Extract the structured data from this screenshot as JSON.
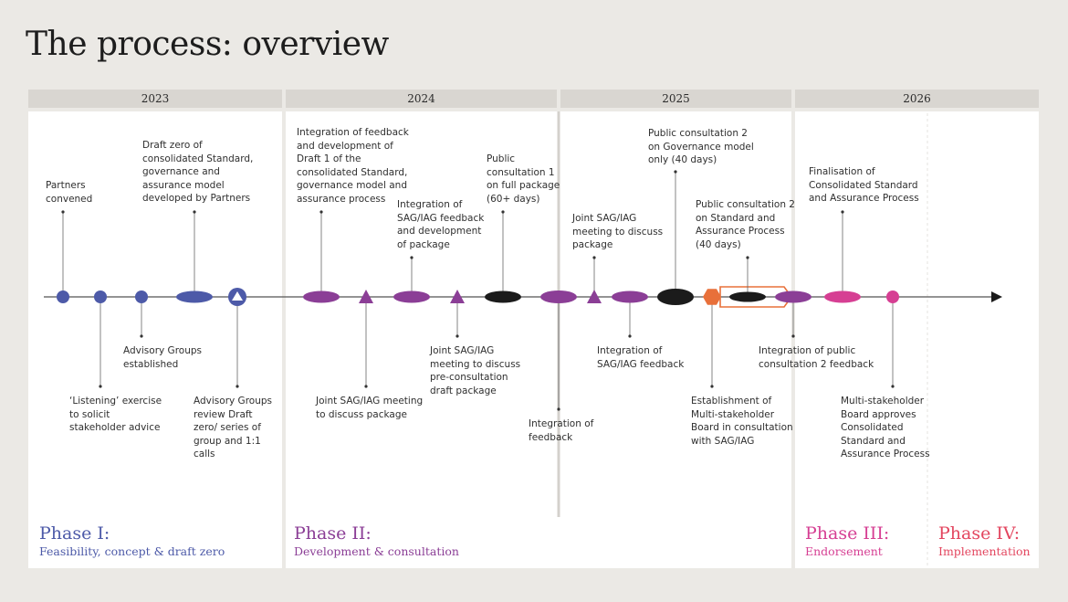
{
  "title": "The process: overview",
  "years": [
    "2023",
    "2024",
    "2025",
    "2026"
  ],
  "phases": [
    {
      "name": "Phase I:",
      "subtitle": "Feasibility, concept & draft zero",
      "color": "#4d5aa8"
    },
    {
      "name": "Phase II:",
      "subtitle": "Development & consultation",
      "color": "#8b3e96"
    },
    {
      "name": "Phase III:",
      "subtitle": "Endorsement",
      "color": "#d63f93"
    },
    {
      "name": "Phase IV:",
      "subtitle": "Implementation",
      "color": "#e3465f"
    }
  ],
  "colors": {
    "blue": "#4d5aa8",
    "purple": "#8b3e96",
    "black": "#1b1b1b",
    "orange": "#e8703a",
    "pink": "#d63f93",
    "panel": "#ffffff",
    "background": "#ebe9e5",
    "yearbar": "#d9d6d1"
  },
  "milestones": [
    {
      "shape": "circle",
      "color": "blue",
      "label": "Partners\nconvened"
    },
    {
      "shape": "circle",
      "color": "blue",
      "label": "‘Listening’ exercise\nto solicit\nstakeholder advice"
    },
    {
      "shape": "circle",
      "color": "blue",
      "label": "Advisory Groups\nestablished"
    },
    {
      "shape": "ellipse",
      "color": "blue",
      "label": "Draft zero of\nconsolidated Standard,\ngovernance and\nassurance model\ndeveloped by Partners"
    },
    {
      "shape": "triangle-in-circle",
      "color": "blue",
      "label": "Advisory Groups\nreview Draft\nzero/ series of\ngroup and 1:1\ncalls"
    },
    {
      "shape": "ellipse",
      "color": "purple",
      "label": "Integration of feedback\nand development of\nDraft 1 of the\nconsolidated Standard,\ngovernance model and\nassurance process"
    },
    {
      "shape": "triangle",
      "color": "purple",
      "label": "Joint SAG/IAG meeting\nto discuss package"
    },
    {
      "shape": "ellipse",
      "color": "purple",
      "label": "Integration of\nSAG/IAG feedback\nand development\nof package"
    },
    {
      "shape": "triangle",
      "color": "purple",
      "label": "Joint SAG/IAG\nmeeting to discuss\npre-consultation\ndraft package"
    },
    {
      "shape": "ellipse",
      "color": "black",
      "label": "Public\nconsultation 1\non full package\n(60+ days)"
    },
    {
      "shape": "ellipse",
      "color": "purple",
      "label": "Integration of\nfeedback"
    },
    {
      "shape": "triangle",
      "color": "purple",
      "label": "Joint SAG/IAG\nmeeting to discuss\npackage"
    },
    {
      "shape": "ellipse",
      "color": "purple",
      "label": "Integration of\nSAG/IAG feedback"
    },
    {
      "shape": "ellipse",
      "color": "black",
      "label": "Public consultation 2\non Governance model\nonly (40 days)"
    },
    {
      "shape": "hexagon",
      "color": "orange",
      "label": "Establishment of\nMulti-stakeholder\nBoard in consultation\nwith SAG/IAG"
    },
    {
      "shape": "ellipse",
      "color": "black",
      "label": "Public consultation 2\non Standard and\nAssurance Process\n(40 days)"
    },
    {
      "shape": "ellipse",
      "color": "purple",
      "label": "Integration of public\nconsultation 2 feedback"
    },
    {
      "shape": "ellipse",
      "color": "pink",
      "label": "Finalisation of\nConsolidated Standard\nand Assurance Process"
    },
    {
      "shape": "circle",
      "color": "pink",
      "label": "Multi-stakeholder\nBoard approves\nConsolidated\nStandard and\nAssurance Process"
    }
  ]
}
